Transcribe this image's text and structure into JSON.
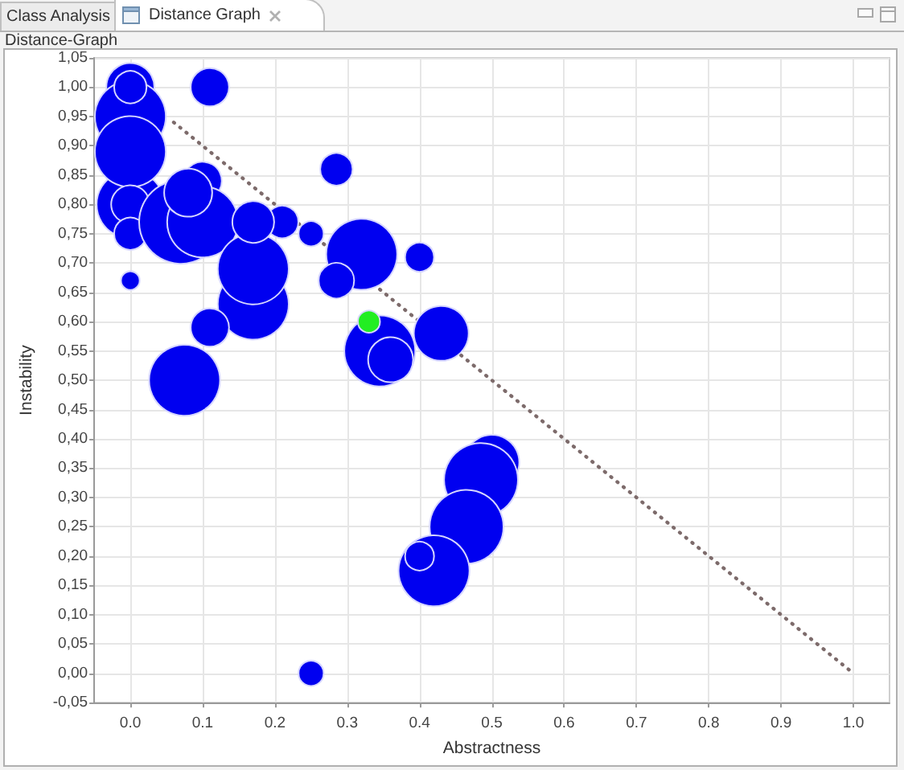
{
  "chart_data": {
    "type": "bubble",
    "title": "Distance-Graph",
    "annotations": [
      "Class Analysis",
      "Distance Graph"
    ],
    "xlabel": "Abstractness",
    "ylabel": "Instability",
    "xlim": [
      -0.05,
      1.05
    ],
    "ylim": [
      -0.05,
      1.05
    ],
    "xticks": [
      {
        "value": 0,
        "label": "0.0"
      },
      {
        "value": 0.1,
        "label": "0.1"
      },
      {
        "value": 0.2,
        "label": "0.2"
      },
      {
        "value": 0.3,
        "label": "0.3"
      },
      {
        "value": 0.4,
        "label": "0.4"
      },
      {
        "value": 0.5,
        "label": "0.5"
      },
      {
        "value": 0.6,
        "label": "0.6"
      },
      {
        "value": 0.7,
        "label": "0.7"
      },
      {
        "value": 0.8,
        "label": "0.8"
      },
      {
        "value": 0.9,
        "label": "0.9"
      },
      {
        "value": 1,
        "label": "1.0"
      }
    ],
    "yticks": [
      {
        "value": -0.05,
        "label": "-0,05"
      },
      {
        "value": 0,
        "label": "0,00"
      },
      {
        "value": 0.05,
        "label": "0,05"
      },
      {
        "value": 0.1,
        "label": "0,10"
      },
      {
        "value": 0.15,
        "label": "0,15"
      },
      {
        "value": 0.2,
        "label": "0,20"
      },
      {
        "value": 0.25,
        "label": "0,25"
      },
      {
        "value": 0.3,
        "label": "0,30"
      },
      {
        "value": 0.35,
        "label": "0,35"
      },
      {
        "value": 0.4,
        "label": "0,40"
      },
      {
        "value": 0.45,
        "label": "0,45"
      },
      {
        "value": 0.5,
        "label": "0,50"
      },
      {
        "value": 0.55,
        "label": "0,55"
      },
      {
        "value": 0.6,
        "label": "0,60"
      },
      {
        "value": 0.65,
        "label": "0,65"
      },
      {
        "value": 0.7,
        "label": "0,70"
      },
      {
        "value": 0.75,
        "label": "0,75"
      },
      {
        "value": 0.8,
        "label": "0,80"
      },
      {
        "value": 0.85,
        "label": "0,85"
      },
      {
        "value": 0.9,
        "label": "0,90"
      },
      {
        "value": 0.95,
        "label": "0,95"
      },
      {
        "value": 1,
        "label": "1,00"
      },
      {
        "value": 1.05,
        "label": "1,05"
      }
    ],
    "grid": true,
    "marker": "circle",
    "series": [
      {
        "type": "line",
        "color": "#7d6b6b",
        "line_style": "dotted",
        "marker": "none",
        "x": [
          0.06,
          1
        ],
        "values": [
          0.94,
          0
        ]
      },
      {
        "color": "#0000f0",
        "x": [
          0.0,
          0.11,
          0.0,
          0.0,
          0.0,
          0.0,
          0.0,
          0.0,
          0.0,
          0.1,
          0.07,
          0.1,
          0.08,
          0.17,
          0.17,
          0.21,
          0.17,
          0.11,
          0.075,
          0.25,
          0.285,
          0.32,
          0.285,
          0.4,
          0.345,
          0.36,
          0.43,
          0.25,
          0.5,
          0.485,
          0.465,
          0.42,
          0.4
        ],
        "values": [
          1.0,
          1.0,
          0.95,
          0.8,
          0.89,
          1.0,
          0.8,
          0.75,
          0.67,
          0.84,
          0.77,
          0.77,
          0.82,
          0.63,
          0.69,
          0.77,
          0.77,
          0.59,
          0.5,
          0.75,
          0.86,
          0.715,
          0.67,
          0.71,
          0.55,
          0.535,
          0.58,
          0.0,
          0.36,
          0.33,
          0.25,
          0.175,
          0.2
        ],
        "sizes": [
          0.33,
          0.21,
          0.72,
          0.65,
          0.72,
          0.15,
          0.21,
          0.15,
          0.05,
          0.21,
          1,
          0.72,
          0.33,
          0.72,
          0.72,
          0.15,
          0.25,
          0.21,
          0.72,
          0.09,
          0.15,
          0.72,
          0.18,
          0.12,
          0.72,
          0.29,
          0.43,
          0.09,
          0.43,
          0.78,
          0.78,
          0.72,
          0.12
        ]
      },
      {
        "color": "#22ee22",
        "x": [
          0.33
        ],
        "values": [
          0.6
        ],
        "sizes": [
          0.07
        ]
      }
    ]
  }
}
